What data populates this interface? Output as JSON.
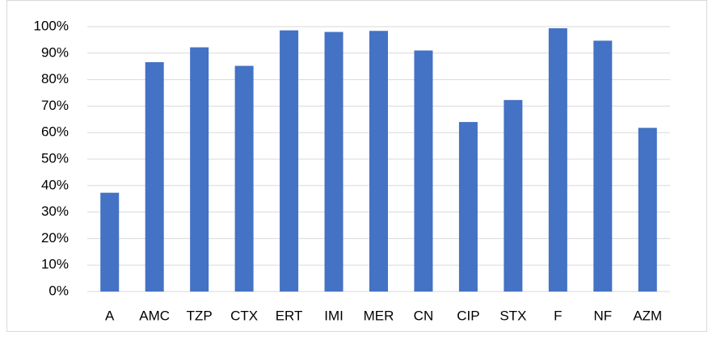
{
  "chart_data": {
    "type": "bar",
    "categories": [
      "A",
      "AMC",
      "TZP",
      "CTX",
      "ERT",
      "IMI",
      "MER",
      "CN",
      "CIP",
      "STX",
      "F",
      "NF",
      "AZM"
    ],
    "values": [
      37.3,
      86.6,
      92.2,
      85.2,
      98.6,
      98.0,
      98.4,
      91.0,
      64.0,
      72.3,
      99.4,
      94.7,
      61.8
    ],
    "color": "#4472c4",
    "ylim": [
      0,
      100
    ],
    "yticks": [
      {
        "value": 0,
        "label": "0%"
      },
      {
        "value": 10,
        "label": "10%"
      },
      {
        "value": 20,
        "label": "20%"
      },
      {
        "value": 30,
        "label": "30%"
      },
      {
        "value": 40,
        "label": "40%"
      },
      {
        "value": 50,
        "label": "50%"
      },
      {
        "value": 60,
        "label": "60%"
      },
      {
        "value": 70,
        "label": "70%"
      },
      {
        "value": 80,
        "label": "80%"
      },
      {
        "value": 90,
        "label": "90%"
      },
      {
        "value": 100,
        "label": "100%"
      }
    ],
    "grid": true
  }
}
